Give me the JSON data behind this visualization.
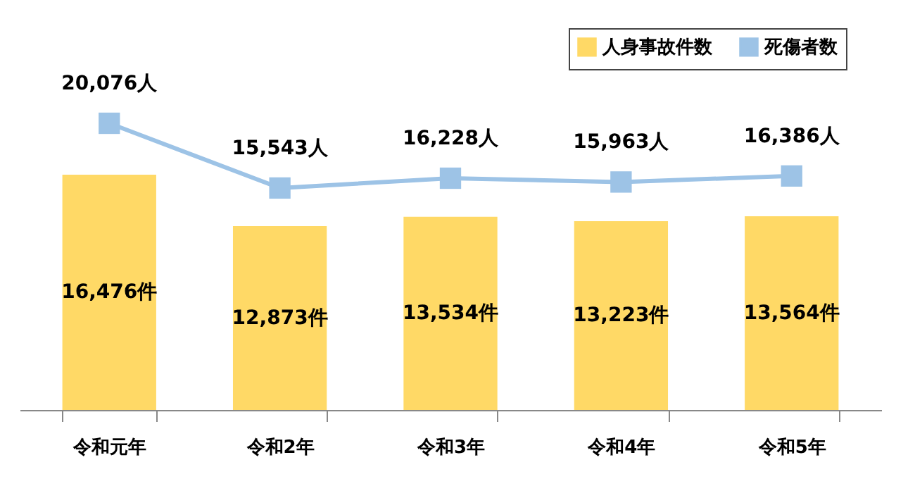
{
  "chart_data": {
    "type": "bar",
    "categories": [
      "令和元年",
      "令和2年",
      "令和3年",
      "令和4年",
      "令和5年"
    ],
    "series": [
      {
        "name": "人身事故件数",
        "color": "#ffd966",
        "values": [
          16476,
          12873,
          13534,
          13223,
          13564
        ],
        "value_labels": [
          "16,476件",
          "12,873件",
          "13,534件",
          "13,223件",
          "13,564件"
        ]
      },
      {
        "name": "死傷者数",
        "type": "line",
        "color": "#9dc3e6",
        "marker": "square",
        "values": [
          20076,
          15543,
          16228,
          15963,
          16386
        ],
        "value_labels": [
          "20,076人",
          "15,543人",
          "16,228人",
          "15,963人",
          "16,386人"
        ]
      }
    ],
    "legend": "top right",
    "grid": false
  }
}
